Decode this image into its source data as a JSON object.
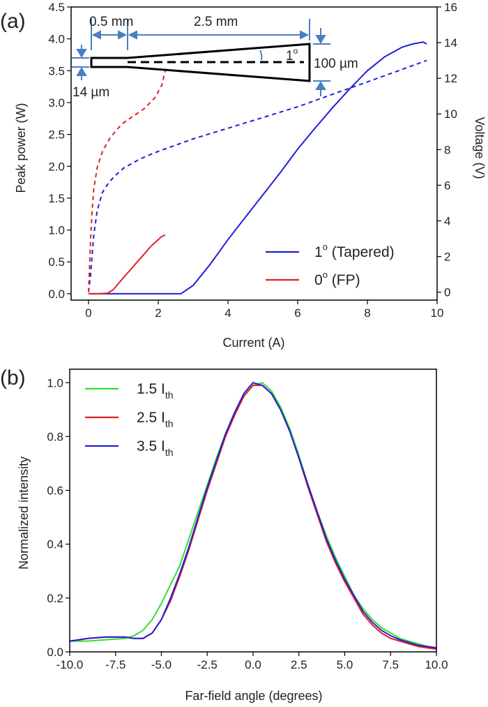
{
  "chart_data": [
    {
      "panel_label": "(a)",
      "type": "line",
      "xlabel": "Current (A)",
      "ylabel": "Peak power (W)",
      "ylabel_right": "Voltage (V)",
      "xlim": [
        -0.5,
        10
      ],
      "ylim": [
        -0.1,
        4.5
      ],
      "ylim_right": [
        -0.44444,
        16
      ],
      "xticks": [
        "0",
        "2",
        "4",
        "6",
        "8",
        "10"
      ],
      "yticks": [
        "0.0",
        "0.5",
        "1.0",
        "1.5",
        "2.0",
        "2.5",
        "3.0",
        "3.5",
        "4.0",
        "4.5"
      ],
      "yticks_right": [
        "0",
        "2",
        "4",
        "6",
        "8",
        "10",
        "12",
        "14",
        "16"
      ],
      "legend_position": "bottom-right",
      "legend": [
        {
          "label": "1",
          "sup": "o",
          "suffix": " (Tapered)",
          "color": "#1f1fd6"
        },
        {
          "label": "0",
          "sup": "o",
          "suffix": " (FP)",
          "color": "#e02020"
        }
      ],
      "series": [
        {
          "name": "1° (Tapered)",
          "quantity": "power",
          "axis": "left",
          "style": "solid",
          "color": "#1f1fd6",
          "x": [
            0,
            1,
            2,
            2.65,
            3.0,
            3.5,
            4.0,
            4.5,
            5.0,
            5.5,
            6.0,
            6.5,
            7.0,
            7.5,
            8.0,
            8.5,
            9.0,
            9.3,
            9.6,
            9.7
          ],
          "y": [
            0.0,
            0.0,
            0.0,
            0.0,
            0.13,
            0.47,
            0.85,
            1.2,
            1.55,
            1.9,
            2.27,
            2.6,
            2.92,
            3.22,
            3.5,
            3.72,
            3.87,
            3.92,
            3.95,
            3.92
          ]
        },
        {
          "name": "1° (Tapered)",
          "quantity": "voltage",
          "axis": "right",
          "style": "dashed",
          "color": "#1f1fd6",
          "x": [
            0.0,
            0.05,
            0.1,
            0.15,
            0.25,
            0.4,
            0.6,
            0.8,
            1.0,
            1.5,
            2.0,
            3.0,
            4.0,
            5.0,
            6.0,
            7.0,
            8.0,
            9.0,
            9.7
          ],
          "y": [
            0.0,
            0.8,
            2.0,
            3.2,
            4.6,
            5.6,
            6.2,
            6.6,
            6.95,
            7.5,
            7.9,
            8.6,
            9.2,
            9.8,
            10.4,
            11.1,
            11.8,
            12.5,
            13.0
          ]
        },
        {
          "name": "0° (FP)",
          "quantity": "power",
          "axis": "left",
          "style": "solid",
          "color": "#e02020",
          "x": [
            0.0,
            0.3,
            0.55,
            0.7,
            1.0,
            1.4,
            1.8,
            2.1,
            2.2
          ],
          "y": [
            0.0,
            0.0,
            0.01,
            0.06,
            0.25,
            0.5,
            0.75,
            0.9,
            0.92
          ]
        },
        {
          "name": "0° (FP)",
          "quantity": "voltage",
          "axis": "right",
          "style": "dashed",
          "color": "#e02020",
          "x": [
            0.0,
            0.03,
            0.06,
            0.1,
            0.15,
            0.25,
            0.4,
            0.6,
            0.8,
            1.0,
            1.3,
            1.6,
            1.9,
            2.1,
            2.2
          ],
          "y": [
            0.0,
            1.5,
            3.0,
            4.5,
            5.8,
            7.0,
            7.9,
            8.6,
            9.1,
            9.5,
            9.9,
            10.3,
            10.9,
            11.6,
            12.4
          ]
        }
      ],
      "inset": {
        "labels": {
          "len1": "0.5 mm",
          "len2": "2.5 mm",
          "angle": "1",
          "angle_sup": "o",
          "width_out": "100 µm",
          "width_in": "14 µm"
        }
      }
    },
    {
      "panel_label": "(b)",
      "type": "line",
      "xlabel": "Far-field angle (degrees)",
      "ylabel": "Normalized intensity",
      "xlim": [
        -10,
        10
      ],
      "ylim": [
        0,
        1.05
      ],
      "xticks": [
        "-10.0",
        "-7.5",
        "-5.0",
        "-2.5",
        "0.0",
        "2.5",
        "5.0",
        "7.5",
        "10.0"
      ],
      "yticks": [
        "0.0",
        "0.2",
        "0.4",
        "0.6",
        "0.8",
        "1.0"
      ],
      "legend_position": "top-left",
      "legend": [
        {
          "label": "1.5 I",
          "sub": "th",
          "color": "#33dd33"
        },
        {
          "label": "2.5 I",
          "sub": "th",
          "color": "#e02020"
        },
        {
          "label": "3.5 I",
          "sub": "th",
          "color": "#1f1fd6"
        }
      ],
      "series": [
        {
          "name": "1.5 Ith",
          "color": "#33dd33",
          "x": [
            -10,
            -9,
            -8,
            -7,
            -6.5,
            -6,
            -5.5,
            -5,
            -4.5,
            -4,
            -3.5,
            -3,
            -2.5,
            -2,
            -1.5,
            -1,
            -0.5,
            0,
            0.5,
            1,
            1.5,
            2,
            2.5,
            3,
            3.5,
            4,
            4.5,
            5,
            5.5,
            6,
            6.5,
            7,
            7.5,
            8,
            8.5,
            9,
            9.5,
            10
          ],
          "y": [
            0.04,
            0.04,
            0.045,
            0.05,
            0.06,
            0.08,
            0.12,
            0.18,
            0.25,
            0.32,
            0.42,
            0.52,
            0.62,
            0.72,
            0.81,
            0.89,
            0.95,
            0.99,
            1.0,
            0.97,
            0.91,
            0.83,
            0.73,
            0.62,
            0.52,
            0.43,
            0.35,
            0.28,
            0.21,
            0.16,
            0.12,
            0.09,
            0.07,
            0.05,
            0.04,
            0.03,
            0.02,
            0.015
          ]
        },
        {
          "name": "2.5 Ith",
          "color": "#e02020",
          "x": [
            -10,
            -9,
            -8,
            -7,
            -6.5,
            -6,
            -5.5,
            -5,
            -4.5,
            -4,
            -3.5,
            -3,
            -2.5,
            -2,
            -1.5,
            -1,
            -0.5,
            0,
            0.5,
            1,
            1.5,
            2,
            2.5,
            3,
            3.5,
            4,
            4.5,
            5,
            5.5,
            6,
            6.5,
            7,
            7.5,
            8,
            8.5,
            9,
            9.5,
            10
          ],
          "y": [
            0.04,
            0.05,
            0.055,
            0.055,
            0.05,
            0.05,
            0.07,
            0.12,
            0.19,
            0.28,
            0.38,
            0.49,
            0.6,
            0.7,
            0.8,
            0.88,
            0.95,
            0.99,
            0.99,
            0.96,
            0.9,
            0.82,
            0.72,
            0.61,
            0.51,
            0.41,
            0.33,
            0.26,
            0.2,
            0.14,
            0.1,
            0.07,
            0.05,
            0.04,
            0.03,
            0.02,
            0.015,
            0.01
          ]
        },
        {
          "name": "3.5 Ith",
          "color": "#1f1fd6",
          "x": [
            -10,
            -9,
            -8,
            -7,
            -6.5,
            -6,
            -5.5,
            -5,
            -4.5,
            -4,
            -3.5,
            -3,
            -2.5,
            -2,
            -1.5,
            -1,
            -0.5,
            0,
            0.5,
            1,
            1.5,
            2,
            2.5,
            3,
            3.5,
            4,
            4.5,
            5,
            5.5,
            6,
            6.5,
            7,
            7.5,
            8,
            8.5,
            9,
            9.5,
            10
          ],
          "y": [
            0.04,
            0.05,
            0.055,
            0.055,
            0.05,
            0.05,
            0.07,
            0.12,
            0.2,
            0.29,
            0.39,
            0.5,
            0.61,
            0.71,
            0.81,
            0.89,
            0.96,
            1.0,
            0.99,
            0.96,
            0.9,
            0.82,
            0.72,
            0.62,
            0.52,
            0.42,
            0.34,
            0.27,
            0.21,
            0.15,
            0.11,
            0.08,
            0.06,
            0.045,
            0.035,
            0.025,
            0.02,
            0.015
          ]
        }
      ]
    }
  ]
}
